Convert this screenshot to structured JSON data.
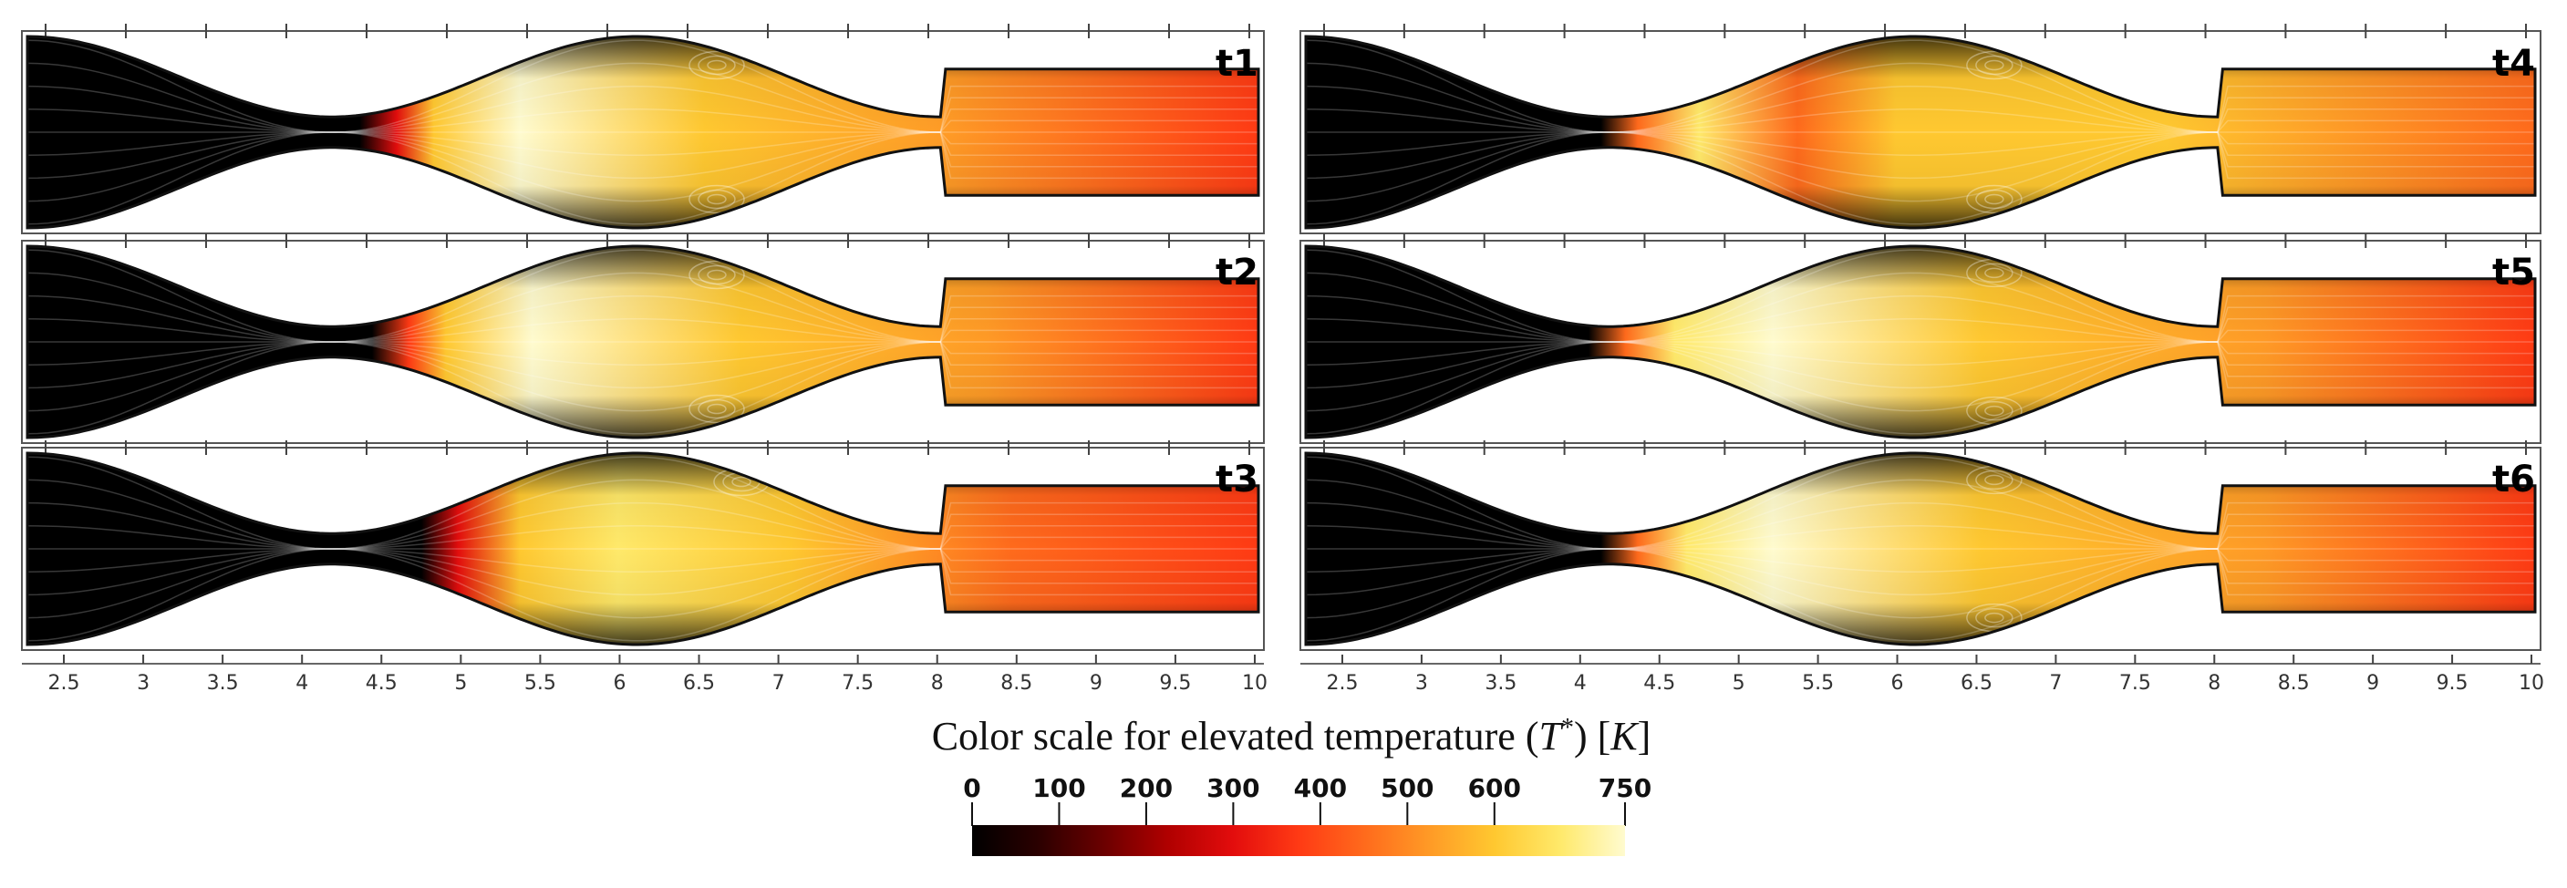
{
  "figure": {
    "colormap": [
      "#000000",
      "#2a0000",
      "#6a0000",
      "#b00000",
      "#e30d0d",
      "#ff3a14",
      "#ff6a1c",
      "#ff9a26",
      "#ffc830",
      "#ffe96a",
      "#fffbcf"
    ]
  },
  "panels": [
    {
      "id": "t1",
      "label": "t1"
    },
    {
      "id": "t2",
      "label": "t2"
    },
    {
      "id": "t3",
      "label": "t3"
    },
    {
      "id": "t4",
      "label": "t4"
    },
    {
      "id": "t5",
      "label": "t5"
    },
    {
      "id": "t6",
      "label": "t6"
    }
  ],
  "axis": {
    "ticks": [
      "2.5",
      "3",
      "3.5",
      "4",
      "4.5",
      "5",
      "5.5",
      "6",
      "6.5",
      "7",
      "7.5",
      "8",
      "8.5",
      "9",
      "9.5",
      "10"
    ]
  },
  "legend": {
    "title": "Color scale for elevated temperature (",
    "symbol": "T",
    "superscript": "*",
    "title_end": ") [",
    "unit": "K",
    "title_close": "]",
    "ticks": [
      "0",
      "100",
      "200",
      "300",
      "400",
      "500",
      "600",
      "750"
    ]
  }
}
